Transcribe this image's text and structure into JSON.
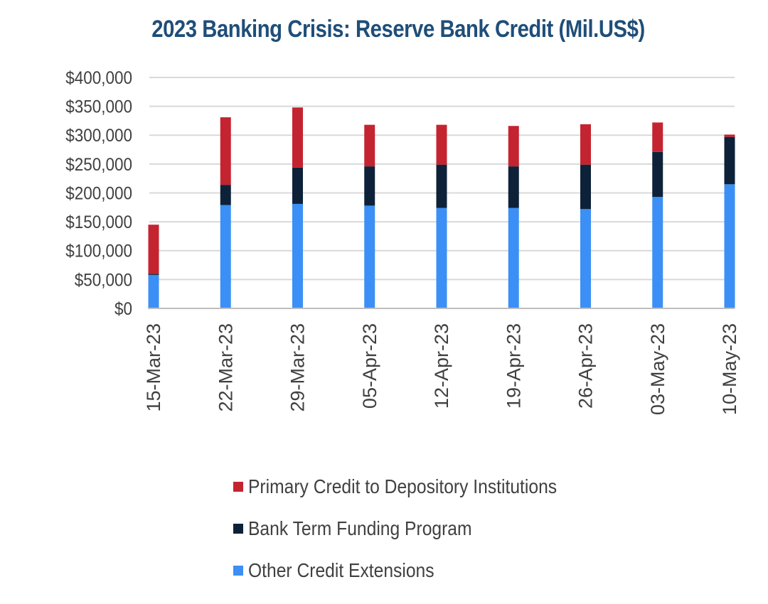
{
  "chart_data": {
    "type": "bar",
    "stacked": true,
    "title": "2023 Banking Crisis: Reserve Bank Credit (Mil.US$)",
    "categories": [
      "15-Mar-23",
      "22-Mar-23",
      "29-Mar-23",
      "05-Apr-23",
      "12-Apr-23",
      "19-Apr-23",
      "26-Apr-23",
      "03-May-23",
      "10-May-23"
    ],
    "series": [
      {
        "name": "Other Credit Extensions",
        "color": "#3c8ff5",
        "values": [
          58000,
          179000,
          181000,
          178000,
          174000,
          174000,
          172000,
          193000,
          215000
        ]
      },
      {
        "name": "Bank Term Funding Program",
        "color": "#0d2238",
        "values": [
          2000,
          35000,
          63000,
          68000,
          75000,
          72000,
          77000,
          78000,
          82000
        ]
      },
      {
        "name": "Primary Credit to Depository Institutions",
        "color": "#c42430",
        "values": [
          85000,
          117000,
          104000,
          72000,
          69000,
          70000,
          70000,
          51000,
          4000
        ]
      }
    ],
    "legend_order": [
      "Primary Credit to Depository Institutions",
      "Bank Term Funding Program",
      "Other Credit Extensions"
    ],
    "ylim": [
      0,
      400000
    ],
    "yticks": [
      "$0",
      "$50,000",
      "$100,000",
      "$150,000",
      "$200,000",
      "$250,000",
      "$300,000",
      "$350,000",
      "$400,000"
    ],
    "grid": true,
    "legend_position": "bottom",
    "gridline_color": "#d9d9d9",
    "axis_color": "#bfbfbf"
  }
}
